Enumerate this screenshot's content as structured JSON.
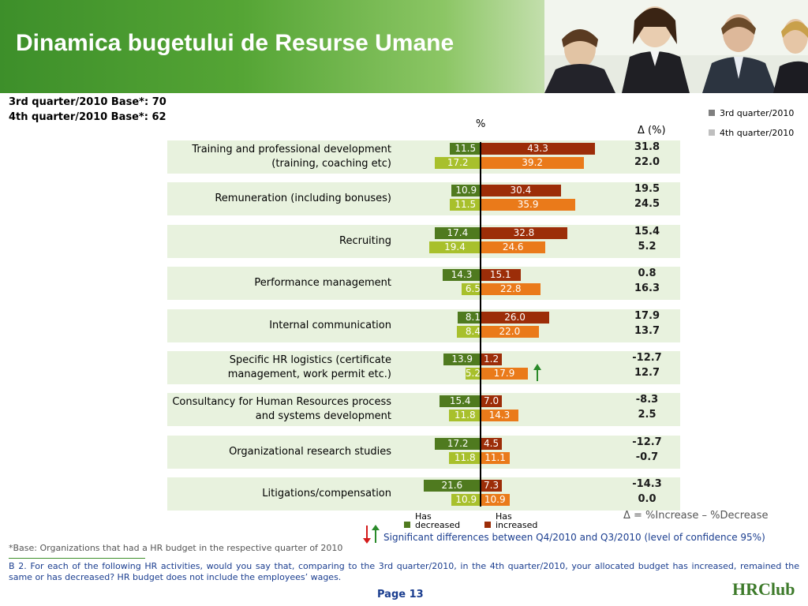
{
  "header": {
    "title": "Dinamica bugetului de Resurse Umane"
  },
  "bases": [
    "3rd quarter/2010 Base*: 70",
    "4th quarter/2010 Base*: 62"
  ],
  "legend": {
    "q3": {
      "label": "3rd quarter/2010",
      "color": "#7f7f7f"
    },
    "q4": {
      "label": "4th quarter/2010",
      "color": "#bfbfbf"
    }
  },
  "chart_data": {
    "type": "bar",
    "unit_label": "%",
    "delta_header": "Δ (%)",
    "colors": {
      "q3_decreased": "#4f7a1f",
      "q3_increased": "#9c2d08",
      "q4_decreased": "#a8c02c",
      "q4_increased": "#ea7a1a"
    },
    "categories": [
      {
        "label": "Training and professional development (training, coaching etc)",
        "q3": {
          "decreased": "11.5",
          "increased": "43.3",
          "delta": "31.8"
        },
        "q4": {
          "decreased": "17.2",
          "increased": "39.2",
          "delta": "22.0"
        }
      },
      {
        "label": "Remuneration (including bonuses)",
        "q3": {
          "decreased": "10.9",
          "increased": "30.4",
          "delta": "19.5"
        },
        "q4": {
          "decreased": "11.5",
          "increased": "35.9",
          "delta": "24.5"
        }
      },
      {
        "label": "Recruiting",
        "q3": {
          "decreased": "17.4",
          "increased": "32.8",
          "delta": "15.4"
        },
        "q4": {
          "decreased": "19.4",
          "increased": "24.6",
          "delta": "5.2"
        }
      },
      {
        "label": "Performance management",
        "q3": {
          "decreased": "14.3",
          "increased": "15.1",
          "delta": "0.8"
        },
        "q4": {
          "decreased": "6.5",
          "increased": "22.8",
          "delta": "16.3"
        }
      },
      {
        "label": "Internal communication",
        "q3": {
          "decreased": "8.1",
          "increased": "26.0",
          "delta": "17.9"
        },
        "q4": {
          "decreased": "8.4",
          "increased": "22.0",
          "delta": "13.7"
        }
      },
      {
        "label": "Specific HR logistics (certificate management, work permit etc.)",
        "q3": {
          "decreased": "13.9",
          "increased": "1.2",
          "delta": "-12.7"
        },
        "q4": {
          "decreased": "5.2",
          "increased": "17.9",
          "delta": "12.7"
        },
        "significant_increase": true
      },
      {
        "label": "Consultancy for Human Resources process and systems development",
        "q3": {
          "decreased": "15.4",
          "increased": "7.0",
          "delta": "-8.3"
        },
        "q4": {
          "decreased": "11.8",
          "increased": "14.3",
          "delta": "2.5"
        }
      },
      {
        "label": "Organizational research studies",
        "q3": {
          "decreased": "17.2",
          "increased": "4.5",
          "delta": "-12.7"
        },
        "q4": {
          "decreased": "11.8",
          "increased": "11.1",
          "delta": "-0.7"
        }
      },
      {
        "label": "Litigations/compensation",
        "q3": {
          "decreased": "21.6",
          "increased": "7.3",
          "delta": "-14.3"
        },
        "q4": {
          "decreased": "10.9",
          "increased": "10.9",
          "delta": "0.0"
        }
      }
    ]
  },
  "footer": {
    "has_decreased": "Has decreased",
    "has_increased": "Has increased",
    "formula": "Δ = %Increase – %Decrease",
    "significance": "Significant differences between Q4/2010 and Q3/2010  (level of confidence 95%)",
    "base_note": "*Base: Organizations that had a HR budget in the respective quarter of 2010",
    "question": "B 2. For each of the following HR activities, would you say that, comparing to the 3rd quarter/2010,  in the 4th quarter/2010, your allocated budget has increased, remained the same or has decreased? HR budget does not include the employees’ wages.",
    "page": "Page 13",
    "logo": "HRClub"
  }
}
